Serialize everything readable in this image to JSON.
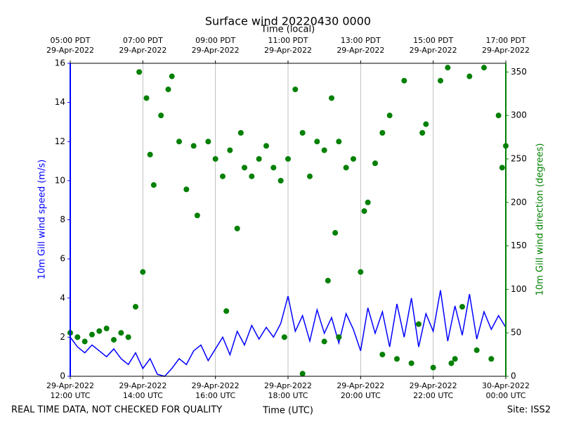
{
  "chart_data": {
    "type": "line",
    "title": "Surface wind 20220430 0000",
    "x_label": "Time (UTC)",
    "x2_label": "Time (local)",
    "y_label": "10m Gill wind speed (m/s)",
    "y2_label": "10m Gill wind direction (degrees)",
    "footer_left": "REAL TIME DATA, NOT CHECKED FOR QUALITY",
    "footer_right": "Site: ISS2",
    "grid": true,
    "xlim": [
      12,
      24
    ],
    "xticks": [
      {
        "value": 12,
        "label": "29-Apr-2022\n12:00 UTC"
      },
      {
        "value": 14,
        "label": "29-Apr-2022\n14:00 UTC"
      },
      {
        "value": 16,
        "label": "29-Apr-2022\n16:00 UTC"
      },
      {
        "value": 18,
        "label": "29-Apr-2022\n18:00 UTC"
      },
      {
        "value": 20,
        "label": "29-Apr-2022\n20:00 UTC"
      },
      {
        "value": 22,
        "label": "29-Apr-2022\n22:00 UTC"
      },
      {
        "value": 24,
        "label": "30-Apr-2022\n00:00 UTC"
      }
    ],
    "x2ticks": [
      {
        "value": 12,
        "label": "05:00 PDT\n29-Apr-2022"
      },
      {
        "value": 14,
        "label": "07:00 PDT\n29-Apr-2022"
      },
      {
        "value": 16,
        "label": "09:00 PDT\n29-Apr-2022"
      },
      {
        "value": 18,
        "label": "11:00 PDT\n29-Apr-2022"
      },
      {
        "value": 20,
        "label": "13:00 PDT\n29-Apr-2022"
      },
      {
        "value": 22,
        "label": "15:00 PDT\n29-Apr-2022"
      },
      {
        "value": 24,
        "label": "17:00 PDT\n29-Apr-2022"
      }
    ],
    "ylim": [
      0,
      16
    ],
    "yticks": [
      0,
      2,
      4,
      6,
      8,
      10,
      12,
      14,
      16
    ],
    "y_color": "#0000ff",
    "y2lim": [
      0,
      360
    ],
    "y2ticks": [
      0,
      50,
      100,
      150,
      200,
      250,
      300,
      350
    ],
    "y2_color": "#008000",
    "series": [
      {
        "type": "line",
        "color": "#0000ff",
        "x": [
          12.0,
          12.2,
          12.4,
          12.6,
          12.8,
          13.0,
          13.2,
          13.4,
          13.6,
          13.8,
          14.0,
          14.2,
          14.4,
          14.6,
          14.8,
          15.0,
          15.2,
          15.4,
          15.6,
          15.8,
          16.0,
          16.2,
          16.4,
          16.6,
          16.8,
          17.0,
          17.2,
          17.4,
          17.6,
          17.8,
          18.0,
          18.2,
          18.4,
          18.6,
          18.8,
          19.0,
          19.2,
          19.4,
          19.6,
          19.8,
          20.0,
          20.2,
          20.4,
          20.6,
          20.8,
          21.0,
          21.2,
          21.4,
          21.6,
          21.8,
          22.0,
          22.2,
          22.4,
          22.6,
          22.8,
          23.0,
          23.2,
          23.4,
          23.6,
          23.8,
          24.0
        ],
        "values": [
          2.0,
          1.5,
          1.2,
          1.6,
          1.3,
          1.0,
          1.4,
          0.9,
          0.6,
          1.2,
          0.4,
          0.9,
          0.1,
          0.0,
          0.4,
          0.9,
          0.6,
          1.3,
          1.6,
          0.8,
          1.4,
          2.0,
          1.1,
          2.3,
          1.6,
          2.6,
          1.9,
          2.5,
          2.0,
          2.7,
          4.1,
          2.3,
          3.1,
          1.8,
          3.4,
          2.2,
          3.0,
          1.7,
          3.2,
          2.4,
          1.3,
          3.5,
          2.2,
          3.3,
          1.5,
          3.7,
          2.0,
          4.0,
          1.5,
          3.2,
          2.3,
          4.4,
          1.8,
          3.6,
          2.1,
          4.2,
          1.9,
          3.3,
          2.4,
          3.1,
          2.5
        ]
      },
      {
        "type": "scatter",
        "axis": "y2",
        "color": "#008000",
        "x": [
          12.0,
          12.2,
          12.4,
          12.6,
          12.8,
          13.0,
          13.2,
          13.4,
          13.6,
          13.8,
          13.9,
          14.0,
          14.1,
          14.2,
          14.3,
          14.5,
          14.7,
          14.8,
          15.0,
          15.2,
          15.4,
          15.5,
          15.8,
          16.0,
          16.2,
          16.3,
          16.4,
          16.6,
          16.7,
          16.8,
          17.0,
          17.2,
          17.4,
          17.6,
          17.8,
          17.9,
          18.0,
          18.2,
          18.4,
          18.4,
          18.6,
          18.8,
          19.0,
          19.0,
          19.1,
          19.2,
          19.3,
          19.4,
          19.4,
          19.6,
          19.8,
          20.0,
          20.1,
          20.2,
          20.4,
          20.6,
          20.6,
          20.8,
          21.0,
          21.2,
          21.4,
          21.6,
          21.7,
          21.8,
          22.0,
          22.2,
          22.4,
          22.5,
          22.6,
          22.8,
          23.0,
          23.2,
          23.4,
          23.6,
          23.8,
          23.9,
          24.0
        ],
        "values": [
          50,
          45,
          40,
          48,
          52,
          55,
          42,
          50,
          45,
          80,
          350,
          120,
          320,
          255,
          220,
          300,
          330,
          345,
          270,
          215,
          265,
          185,
          270,
          250,
          230,
          75,
          260,
          170,
          280,
          240,
          230,
          250,
          265,
          240,
          225,
          45,
          250,
          330,
          280,
          3,
          230,
          270,
          260,
          40,
          110,
          320,
          165,
          270,
          45,
          240,
          250,
          120,
          190,
          200,
          245,
          280,
          25,
          300,
          20,
          340,
          15,
          60,
          280,
          290,
          10,
          340,
          355,
          15,
          20,
          80,
          345,
          30,
          355,
          20,
          300,
          240,
          265
        ]
      }
    ]
  }
}
